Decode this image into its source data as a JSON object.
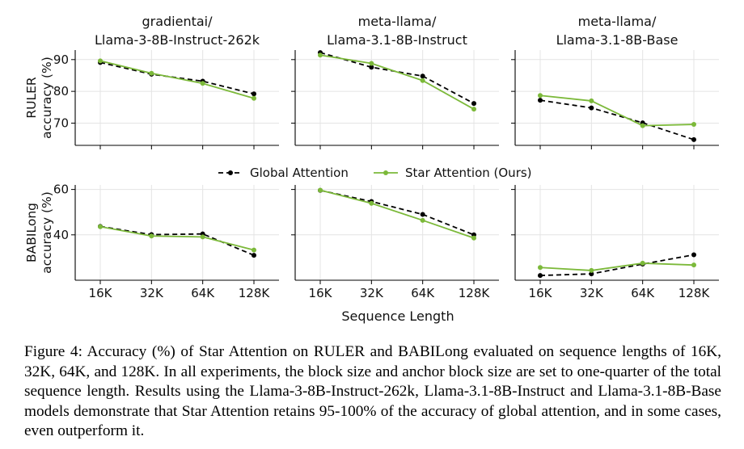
{
  "figure": {
    "xlabel": "Sequence Length",
    "legend": [
      {
        "label": "Global Attention",
        "color": "#000000",
        "dash": "dashed"
      },
      {
        "label": "Star Attention (Ours)",
        "color": "#7cb93a",
        "dash": "solid"
      }
    ],
    "models": [
      {
        "line1": "gradientai/",
        "line2": "Llama-3-8B-Instruct-262k"
      },
      {
        "line1": "meta-llama/",
        "line2": "Llama-3.1-8B-Instruct"
      },
      {
        "line1": "meta-llama/",
        "line2": "Llama-3.1-8B-Base"
      }
    ],
    "rows": [
      {
        "line1": "RULER",
        "line2": "accuracy (%)"
      },
      {
        "line1": "BABILong",
        "line2": "accuracy (%)"
      }
    ],
    "x_ticks": [
      "16K",
      "32K",
      "64K",
      "128K"
    ]
  },
  "chart_data": [
    {
      "type": "line",
      "benchmark": "RULER",
      "model": "gradientai/Llama-3-8B-Instruct-262k",
      "categories": [
        "16K",
        "32K",
        "64K",
        "128K"
      ],
      "ylim": [
        63,
        93
      ],
      "yticks": [
        70,
        80,
        90
      ],
      "grid": true,
      "series": [
        {
          "name": "Global Attention",
          "values": [
            89.1,
            85.4,
            83.2,
            79.2
          ]
        },
        {
          "name": "Star Attention (Ours)",
          "values": [
            89.6,
            85.7,
            82.5,
            77.8
          ]
        }
      ]
    },
    {
      "type": "line",
      "benchmark": "RULER",
      "model": "meta-llama/Llama-3.1-8B-Instruct",
      "categories": [
        "16K",
        "32K",
        "64K",
        "128K"
      ],
      "ylim": [
        63,
        93
      ],
      "yticks": [
        70,
        80,
        90
      ],
      "grid": true,
      "series": [
        {
          "name": "Global Attention",
          "values": [
            92.2,
            87.6,
            84.8,
            76.2
          ]
        },
        {
          "name": "Star Attention (Ours)",
          "values": [
            91.4,
            88.8,
            83.4,
            74.4
          ]
        }
      ]
    },
    {
      "type": "line",
      "benchmark": "RULER",
      "model": "meta-llama/Llama-3.1-8B-Base",
      "categories": [
        "16K",
        "32K",
        "64K",
        "128K"
      ],
      "ylim": [
        63,
        93
      ],
      "yticks": [
        70,
        80,
        90
      ],
      "grid": true,
      "series": [
        {
          "name": "Global Attention",
          "values": [
            77.2,
            74.8,
            70.1,
            64.8
          ]
        },
        {
          "name": "Star Attention (Ours)",
          "values": [
            78.7,
            77.0,
            69.2,
            69.6
          ]
        }
      ]
    },
    {
      "type": "line",
      "benchmark": "BABILong",
      "model": "gradientai/Llama-3-8B-Instruct-262k",
      "categories": [
        "16K",
        "32K",
        "64K",
        "128K"
      ],
      "ylim": [
        20,
        62
      ],
      "yticks": [
        40,
        60
      ],
      "grid": true,
      "series": [
        {
          "name": "Global Attention",
          "values": [
            43.7,
            40.1,
            40.4,
            31.0
          ]
        },
        {
          "name": "Star Attention (Ours)",
          "values": [
            43.6,
            39.5,
            39.1,
            33.3
          ]
        }
      ]
    },
    {
      "type": "line",
      "benchmark": "BABILong",
      "model": "meta-llama/Llama-3.1-8B-Instruct",
      "categories": [
        "16K",
        "32K",
        "64K",
        "128K"
      ],
      "ylim": [
        20,
        62
      ],
      "yticks": [
        40,
        60
      ],
      "grid": true,
      "series": [
        {
          "name": "Global Attention",
          "values": [
            59.6,
            54.7,
            49.0,
            40.0
          ]
        },
        {
          "name": "Star Attention (Ours)",
          "values": [
            59.7,
            53.9,
            46.4,
            38.6
          ]
        }
      ]
    },
    {
      "type": "line",
      "benchmark": "BABILong",
      "model": "meta-llama/Llama-3.1-8B-Base",
      "categories": [
        "16K",
        "32K",
        "64K",
        "128K"
      ],
      "ylim": [
        20,
        62
      ],
      "yticks": [
        40,
        60
      ],
      "grid": true,
      "series": [
        {
          "name": "Global Attention",
          "values": [
            22.1,
            22.8,
            27.1,
            31.2
          ]
        },
        {
          "name": "Star Attention (Ours)",
          "values": [
            25.6,
            24.3,
            27.5,
            26.7
          ]
        }
      ]
    }
  ],
  "caption": "Figure 4: Accuracy (%) of Star Attention on RULER and BABILong evaluated on sequence lengths of 16K, 32K, 64K, and 128K. In all experiments, the block size and anchor block size are set to one-quarter of the total sequence length. Results using the Llama-3-8B-Instruct-262k, Llama-3.1-8B-Instruct and Llama-3.1-8B-Base models demonstrate that Star Attention retains 95-100% of the accuracy of global attention, and in some cases, even outperform it."
}
